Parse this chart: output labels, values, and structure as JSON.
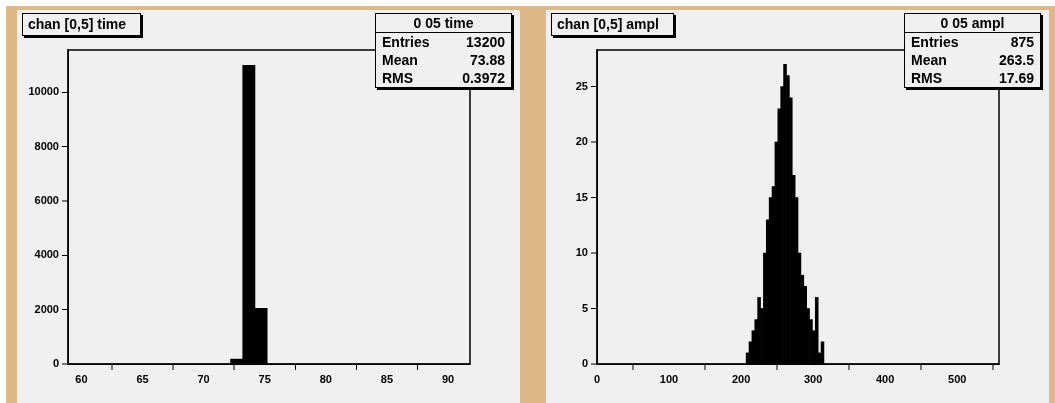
{
  "chart_data": [
    {
      "type": "histogram",
      "title": "chan [0,5] time",
      "bins": [
        72.2,
        73.2,
        74.2,
        75.2
      ],
      "values": [
        180,
        11000,
        2050
      ],
      "color": "#000000",
      "xlim": [
        58.9,
        91.8
      ],
      "xticks": [
        60,
        65,
        70,
        75,
        80,
        85,
        90
      ],
      "ylim": [
        0,
        11560
      ],
      "yticks": [
        0,
        2000,
        4000,
        6000,
        8000,
        10000
      ],
      "annotations": [
        "0 05 time",
        "Entries",
        "13200",
        "Mean",
        "73.88",
        "RMS",
        "0.3972"
      ]
    },
    {
      "type": "histogram",
      "title": "chan [0,5] ampl",
      "bins": [
        207,
        211,
        215,
        219,
        223,
        227,
        231,
        235,
        239,
        243,
        247,
        251,
        255,
        259,
        263,
        267,
        271,
        275,
        279,
        283,
        287,
        291,
        295,
        299,
        303,
        307,
        311,
        315
      ],
      "values": [
        1,
        2,
        3,
        4,
        6,
        5,
        10,
        13,
        15,
        16,
        20,
        23,
        25,
        27,
        26,
        24,
        17,
        15,
        10,
        8,
        7,
        5,
        4,
        3,
        6,
        1,
        2
      ],
      "color": "#000000",
      "xlim": [
        0,
        558
      ],
      "xticks": [
        0,
        100,
        200,
        300,
        400,
        500
      ],
      "ylim": [
        0,
        28.3
      ],
      "yticks": [
        0,
        5,
        10,
        15,
        20,
        25
      ],
      "annotations": [
        "0 05 ampl",
        "Entries",
        "875",
        "Mean",
        "263.5",
        "RMS",
        "17.69"
      ]
    }
  ]
}
